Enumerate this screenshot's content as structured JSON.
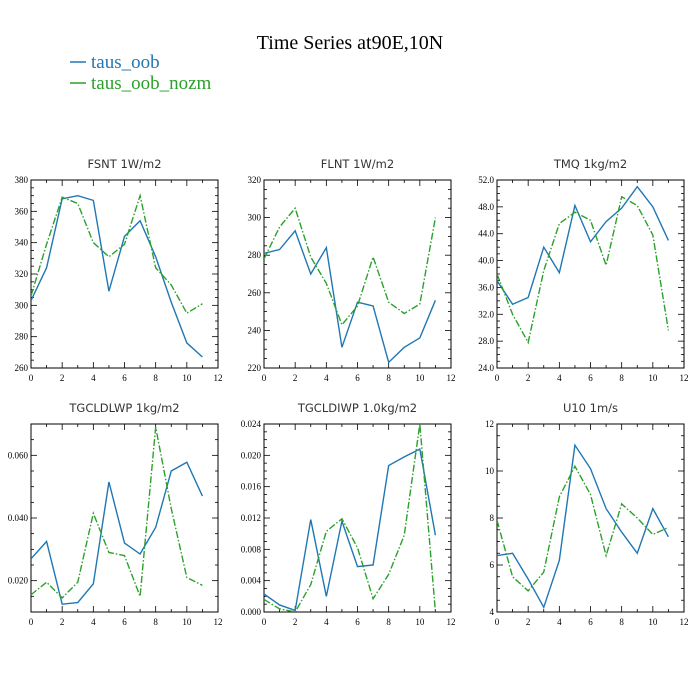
{
  "figure": {
    "title": "Time Series at90E,10N"
  },
  "legend": [
    {
      "label": "taus_oob",
      "color": "#1f77b4",
      "dash": "solid"
    },
    {
      "label": "taus_oob_nozm",
      "color": "#2ca02c",
      "dash": "dashdot"
    }
  ],
  "chart_data": [
    {
      "type": "line",
      "title": "FSNT   1W/m2",
      "xlim": [
        0,
        12
      ],
      "ylim": [
        260,
        380
      ],
      "xticks": [
        0,
        2,
        4,
        6,
        8,
        10,
        12
      ],
      "xtick_labels": [
        "0",
        "2",
        "4",
        "6",
        "8",
        "10",
        "12"
      ],
      "yticks": [
        260,
        280,
        300,
        320,
        340,
        360,
        380
      ],
      "ytick_labels": [
        "260",
        "280",
        "300",
        "320",
        "340",
        "360",
        "380"
      ],
      "x": [
        0,
        1,
        2,
        3,
        4,
        5,
        6,
        7,
        8,
        9,
        10,
        11
      ],
      "series": [
        {
          "name": "taus_oob",
          "values": [
            303,
            324,
            368,
            370,
            367,
            309,
            344,
            354,
            331,
            302,
            276,
            267
          ]
        },
        {
          "name": "taus_oob_nozm",
          "values": [
            306,
            339,
            369,
            365,
            340,
            331,
            339,
            370,
            324,
            313,
            295,
            301
          ]
        }
      ]
    },
    {
      "type": "line",
      "title": "FLNT   1W/m2",
      "xlim": [
        0,
        12
      ],
      "ylim": [
        220,
        320
      ],
      "xticks": [
        0,
        2,
        4,
        6,
        8,
        10,
        12
      ],
      "xtick_labels": [
        "0",
        "2",
        "4",
        "6",
        "8",
        "10",
        "12"
      ],
      "yticks": [
        220,
        240,
        260,
        280,
        300,
        320
      ],
      "ytick_labels": [
        "220",
        "240",
        "260",
        "280",
        "300",
        "320"
      ],
      "x": [
        0,
        1,
        2,
        3,
        4,
        5,
        6,
        7,
        8,
        9,
        10,
        11
      ],
      "series": [
        {
          "name": "taus_oob",
          "values": [
            281,
            283,
            293,
            270,
            284,
            231,
            255,
            253,
            223,
            231,
            236,
            256
          ]
        },
        {
          "name": "taus_oob_nozm",
          "values": [
            278,
            295,
            305,
            279,
            265,
            243,
            253,
            279,
            255,
            249,
            254,
            300
          ]
        }
      ]
    },
    {
      "type": "line",
      "title": "TMQ   1kg/m2",
      "xlim": [
        0,
        12
      ],
      "ylim": [
        24,
        52
      ],
      "xticks": [
        0,
        2,
        4,
        6,
        8,
        10,
        12
      ],
      "xtick_labels": [
        "0",
        "2",
        "4",
        "6",
        "8",
        "10",
        "12"
      ],
      "yticks": [
        24,
        28,
        32,
        36,
        40,
        44,
        48,
        52
      ],
      "ytick_labels": [
        "24.0",
        "28.0",
        "32.0",
        "36.0",
        "40.0",
        "44.0",
        "48.0",
        "52.0"
      ],
      "x": [
        0,
        1,
        2,
        3,
        4,
        5,
        6,
        7,
        8,
        9,
        10,
        11
      ],
      "series": [
        {
          "name": "taus_oob",
          "values": [
            37,
            33.5,
            34.5,
            42,
            38.2,
            48.2,
            42.8,
            45.8,
            47.8,
            51,
            48,
            43
          ]
        },
        {
          "name": "taus_oob_nozm",
          "values": [
            38,
            32,
            27.8,
            38.5,
            45.5,
            47.2,
            46,
            39.3,
            49.5,
            48.2,
            43.8,
            29.6
          ]
        }
      ]
    },
    {
      "type": "line",
      "title": "TGCLDLWP   1kg/m2",
      "xlim": [
        0,
        12
      ],
      "ylim": [
        0.01,
        0.07
      ],
      "xticks": [
        0,
        2,
        4,
        6,
        8,
        10,
        12
      ],
      "xtick_labels": [
        "0",
        "2",
        "4",
        "6",
        "8",
        "10",
        "12"
      ],
      "yticks": [
        0.02,
        0.04,
        0.06
      ],
      "ytick_labels": [
        "0.020",
        "0.040",
        "0.060"
      ],
      "x": [
        0,
        1,
        2,
        3,
        4,
        5,
        6,
        7,
        8,
        9,
        10,
        11
      ],
      "series": [
        {
          "name": "taus_oob",
          "values": [
            0.027,
            0.0325,
            0.0125,
            0.013,
            0.019,
            0.0515,
            0.032,
            0.0285,
            0.037,
            0.055,
            0.0578,
            0.047
          ]
        },
        {
          "name": "taus_oob_nozm",
          "values": [
            0.0155,
            0.0195,
            0.0145,
            0.0195,
            0.0415,
            0.029,
            0.028,
            0.015,
            0.069,
            0.043,
            0.021,
            0.0185
          ]
        }
      ]
    },
    {
      "type": "line",
      "title": "TGCLDIWP   1.0kg/m2",
      "xlim": [
        0,
        12
      ],
      "ylim": [
        0,
        0.024
      ],
      "xticks": [
        0,
        2,
        4,
        6,
        8,
        10,
        12
      ],
      "xtick_labels": [
        "0",
        "2",
        "4",
        "6",
        "8",
        "10",
        "12"
      ],
      "yticks": [
        0,
        0.004,
        0.008,
        0.012,
        0.016,
        0.02,
        0.024
      ],
      "ytick_labels": [
        "0.000",
        "0.004",
        "0.008",
        "0.012",
        "0.016",
        "0.020",
        "0.024"
      ],
      "x": [
        0,
        1,
        2,
        3,
        4,
        5,
        6,
        7,
        8,
        9,
        10,
        11
      ],
      "series": [
        {
          "name": "taus_oob",
          "values": [
            0.0023,
            0.0009,
            0.0002,
            0.0118,
            0.002,
            0.0116,
            0.0058,
            0.006,
            0.0187,
            0.0198,
            0.0208,
            0.0098
          ]
        },
        {
          "name": "taus_oob_nozm",
          "values": [
            0.0016,
            0.0004,
            0.0,
            0.0035,
            0.0103,
            0.0119,
            0.0082,
            0.0017,
            0.0048,
            0.0098,
            0.024,
            0.0
          ]
        }
      ]
    },
    {
      "type": "line",
      "title": "U10   1m/s",
      "xlim": [
        0,
        12
      ],
      "ylim": [
        4,
        12
      ],
      "xticks": [
        0,
        2,
        4,
        6,
        8,
        10,
        12
      ],
      "xtick_labels": [
        "0",
        "2",
        "4",
        "6",
        "8",
        "10",
        "12"
      ],
      "yticks": [
        4,
        6,
        8,
        10,
        12
      ],
      "ytick_labels": [
        "4",
        "6",
        "8",
        "10",
        "12"
      ],
      "x": [
        0,
        1,
        2,
        3,
        4,
        5,
        6,
        7,
        8,
        9,
        10,
        11
      ],
      "series": [
        {
          "name": "taus_oob",
          "values": [
            6.4,
            6.5,
            5.4,
            4.2,
            6.2,
            11.1,
            10.1,
            8.4,
            7.4,
            6.5,
            8.4,
            7.2
          ]
        },
        {
          "name": "taus_oob_nozm",
          "values": [
            7.9,
            5.5,
            4.9,
            5.7,
            8.9,
            10.2,
            9.0,
            6.4,
            8.6,
            8.0,
            7.3,
            7.6
          ]
        }
      ]
    }
  ]
}
